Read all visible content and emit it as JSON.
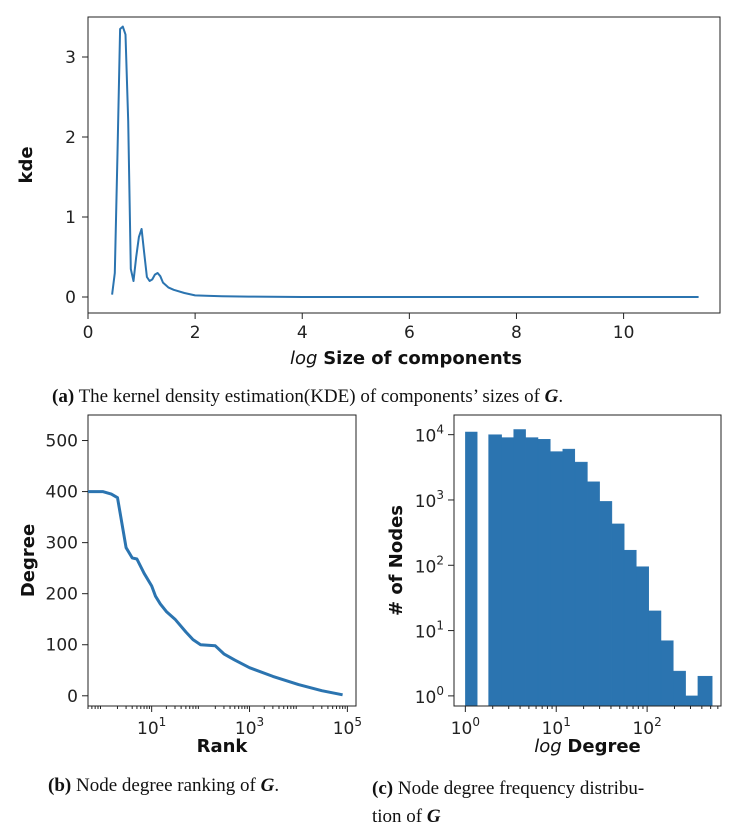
{
  "accent": "#2b74b0",
  "captions": {
    "a_label": "(a)",
    "a_text": "The kernel density estimation(KDE) of components’ sizes of",
    "a_var": "G",
    "a_end": ".",
    "b_label": "(b)",
    "b_text": "Node degree ranking of",
    "b_var": "G",
    "b_end": ".",
    "c_label": "(c)",
    "c_text": "Node degree frequency distribu-",
    "c_line2": "tion of",
    "c_var": "G"
  },
  "chart_data": [
    {
      "id": "a",
      "type": "line",
      "xlabel_italic": "log",
      "xlabel": "Size of components",
      "ylabel": "kde",
      "xlim": [
        0,
        11.8
      ],
      "ylim": [
        -0.2,
        3.5
      ],
      "xticks": [
        0,
        2,
        4,
        6,
        8,
        10
      ],
      "yticks": [
        0,
        1,
        2,
        3
      ],
      "x": [
        0.45,
        0.5,
        0.55,
        0.6,
        0.65,
        0.7,
        0.75,
        0.8,
        0.85,
        0.9,
        0.95,
        1.0,
        1.05,
        1.1,
        1.15,
        1.2,
        1.25,
        1.3,
        1.35,
        1.4,
        1.5,
        1.6,
        1.8,
        2.0,
        2.2,
        2.5,
        3.0,
        4.0,
        6.0,
        8.0,
        10.0,
        11.4
      ],
      "y": [
        0.03,
        0.3,
        1.8,
        3.35,
        3.38,
        3.28,
        2.2,
        0.35,
        0.2,
        0.5,
        0.75,
        0.85,
        0.55,
        0.25,
        0.2,
        0.22,
        0.28,
        0.3,
        0.26,
        0.18,
        0.12,
        0.09,
        0.05,
        0.02,
        0.015,
        0.01,
        0.005,
        0.0,
        0.0,
        0.0,
        0.0,
        0.0
      ]
    },
    {
      "id": "b",
      "type": "line",
      "xscale": "log",
      "xlabel": "Rank",
      "ylabel": "Degree",
      "xlim": [
        0.5,
        150000
      ],
      "ylim": [
        -20,
        550
      ],
      "xticks": [
        10,
        1000,
        100000
      ],
      "xtick_labels": [
        {
          "base": "10",
          "exp": "1"
        },
        {
          "base": "10",
          "exp": "3"
        },
        {
          "base": "10",
          "exp": "5"
        }
      ],
      "yticks": [
        0,
        100,
        200,
        300,
        400,
        500
      ],
      "x": [
        0.5,
        1,
        1.5,
        2,
        3,
        4,
        5,
        7,
        10,
        12,
        15,
        20,
        30,
        50,
        70,
        100,
        200,
        300,
        500,
        1000,
        3000,
        10000,
        30000,
        80000
      ],
      "y": [
        400,
        400,
        395,
        388,
        290,
        270,
        268,
        240,
        215,
        195,
        180,
        165,
        150,
        125,
        110,
        100,
        98,
        82,
        70,
        55,
        38,
        22,
        10,
        2
      ]
    },
    {
      "id": "c",
      "type": "bar",
      "xscale": "log",
      "yscale": "log",
      "xlabel_italic": "log",
      "xlabel": "Degree",
      "ylabel": "# of Nodes",
      "xlim": [
        0.75,
        650
      ],
      "ylim": [
        0.7,
        20000
      ],
      "xticks": [
        1,
        10,
        100
      ],
      "xtick_labels": [
        {
          "base": "10",
          "exp": "0"
        },
        {
          "base": "10",
          "exp": "1"
        },
        {
          "base": "10",
          "exp": "2"
        }
      ],
      "yticks": [
        1,
        10,
        100,
        1000,
        10000
      ],
      "ytick_labels": [
        {
          "base": "10",
          "exp": "0"
        },
        {
          "base": "10",
          "exp": "1"
        },
        {
          "base": "10",
          "exp": "2"
        },
        {
          "base": "10",
          "exp": "3"
        },
        {
          "base": "10",
          "exp": "4"
        }
      ],
      "bins": [
        [
          1.0,
          1.35
        ],
        [
          1.8,
          2.5
        ],
        [
          2.5,
          3.4
        ],
        [
          3.4,
          4.6
        ],
        [
          4.6,
          6.3
        ],
        [
          6.3,
          8.6
        ],
        [
          8.6,
          11.8
        ],
        [
          11.8,
          16.0
        ],
        [
          16.0,
          22.0
        ],
        [
          22.0,
          30.0
        ],
        [
          30.0,
          41.0
        ],
        [
          41.0,
          56.0
        ],
        [
          56.0,
          76.0
        ],
        [
          76.0,
          104.0
        ],
        [
          104.0,
          142.0
        ],
        [
          142.0,
          194.0
        ],
        [
          194.0,
          265.0
        ],
        [
          265.0,
          362.0
        ],
        [
          362.0,
          520.0
        ]
      ],
      "values": [
        11000,
        10000,
        9000,
        12000,
        9000,
        8500,
        5500,
        6000,
        3800,
        1900,
        950,
        430,
        170,
        95,
        20,
        7,
        2.4,
        1,
        2
      ]
    }
  ]
}
